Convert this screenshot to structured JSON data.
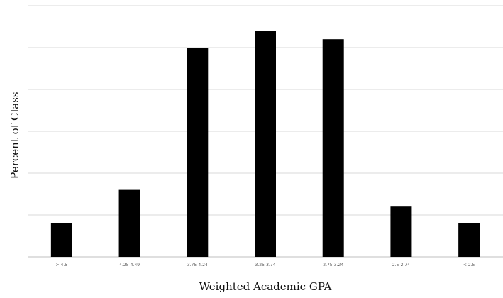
{
  "chart_data": {
    "type": "bar",
    "title": "",
    "xlabel": "Weighted Academic GPA",
    "ylabel": "Percent of Class",
    "categories": [
      "> 4.5",
      "4.25-4.49",
      "3.75-4.24",
      "3.25-3.74",
      "2.75-3.24",
      "2.5-2.74",
      "< 2.5"
    ],
    "values": [
      4,
      8,
      25,
      27,
      26,
      6,
      4
    ],
    "ylim": [
      0,
      30
    ],
    "grid": true,
    "legend": false,
    "colors": {
      "bar": "#000000",
      "grid": "#d9d9d9",
      "axis": "#bfbfbf"
    }
  }
}
